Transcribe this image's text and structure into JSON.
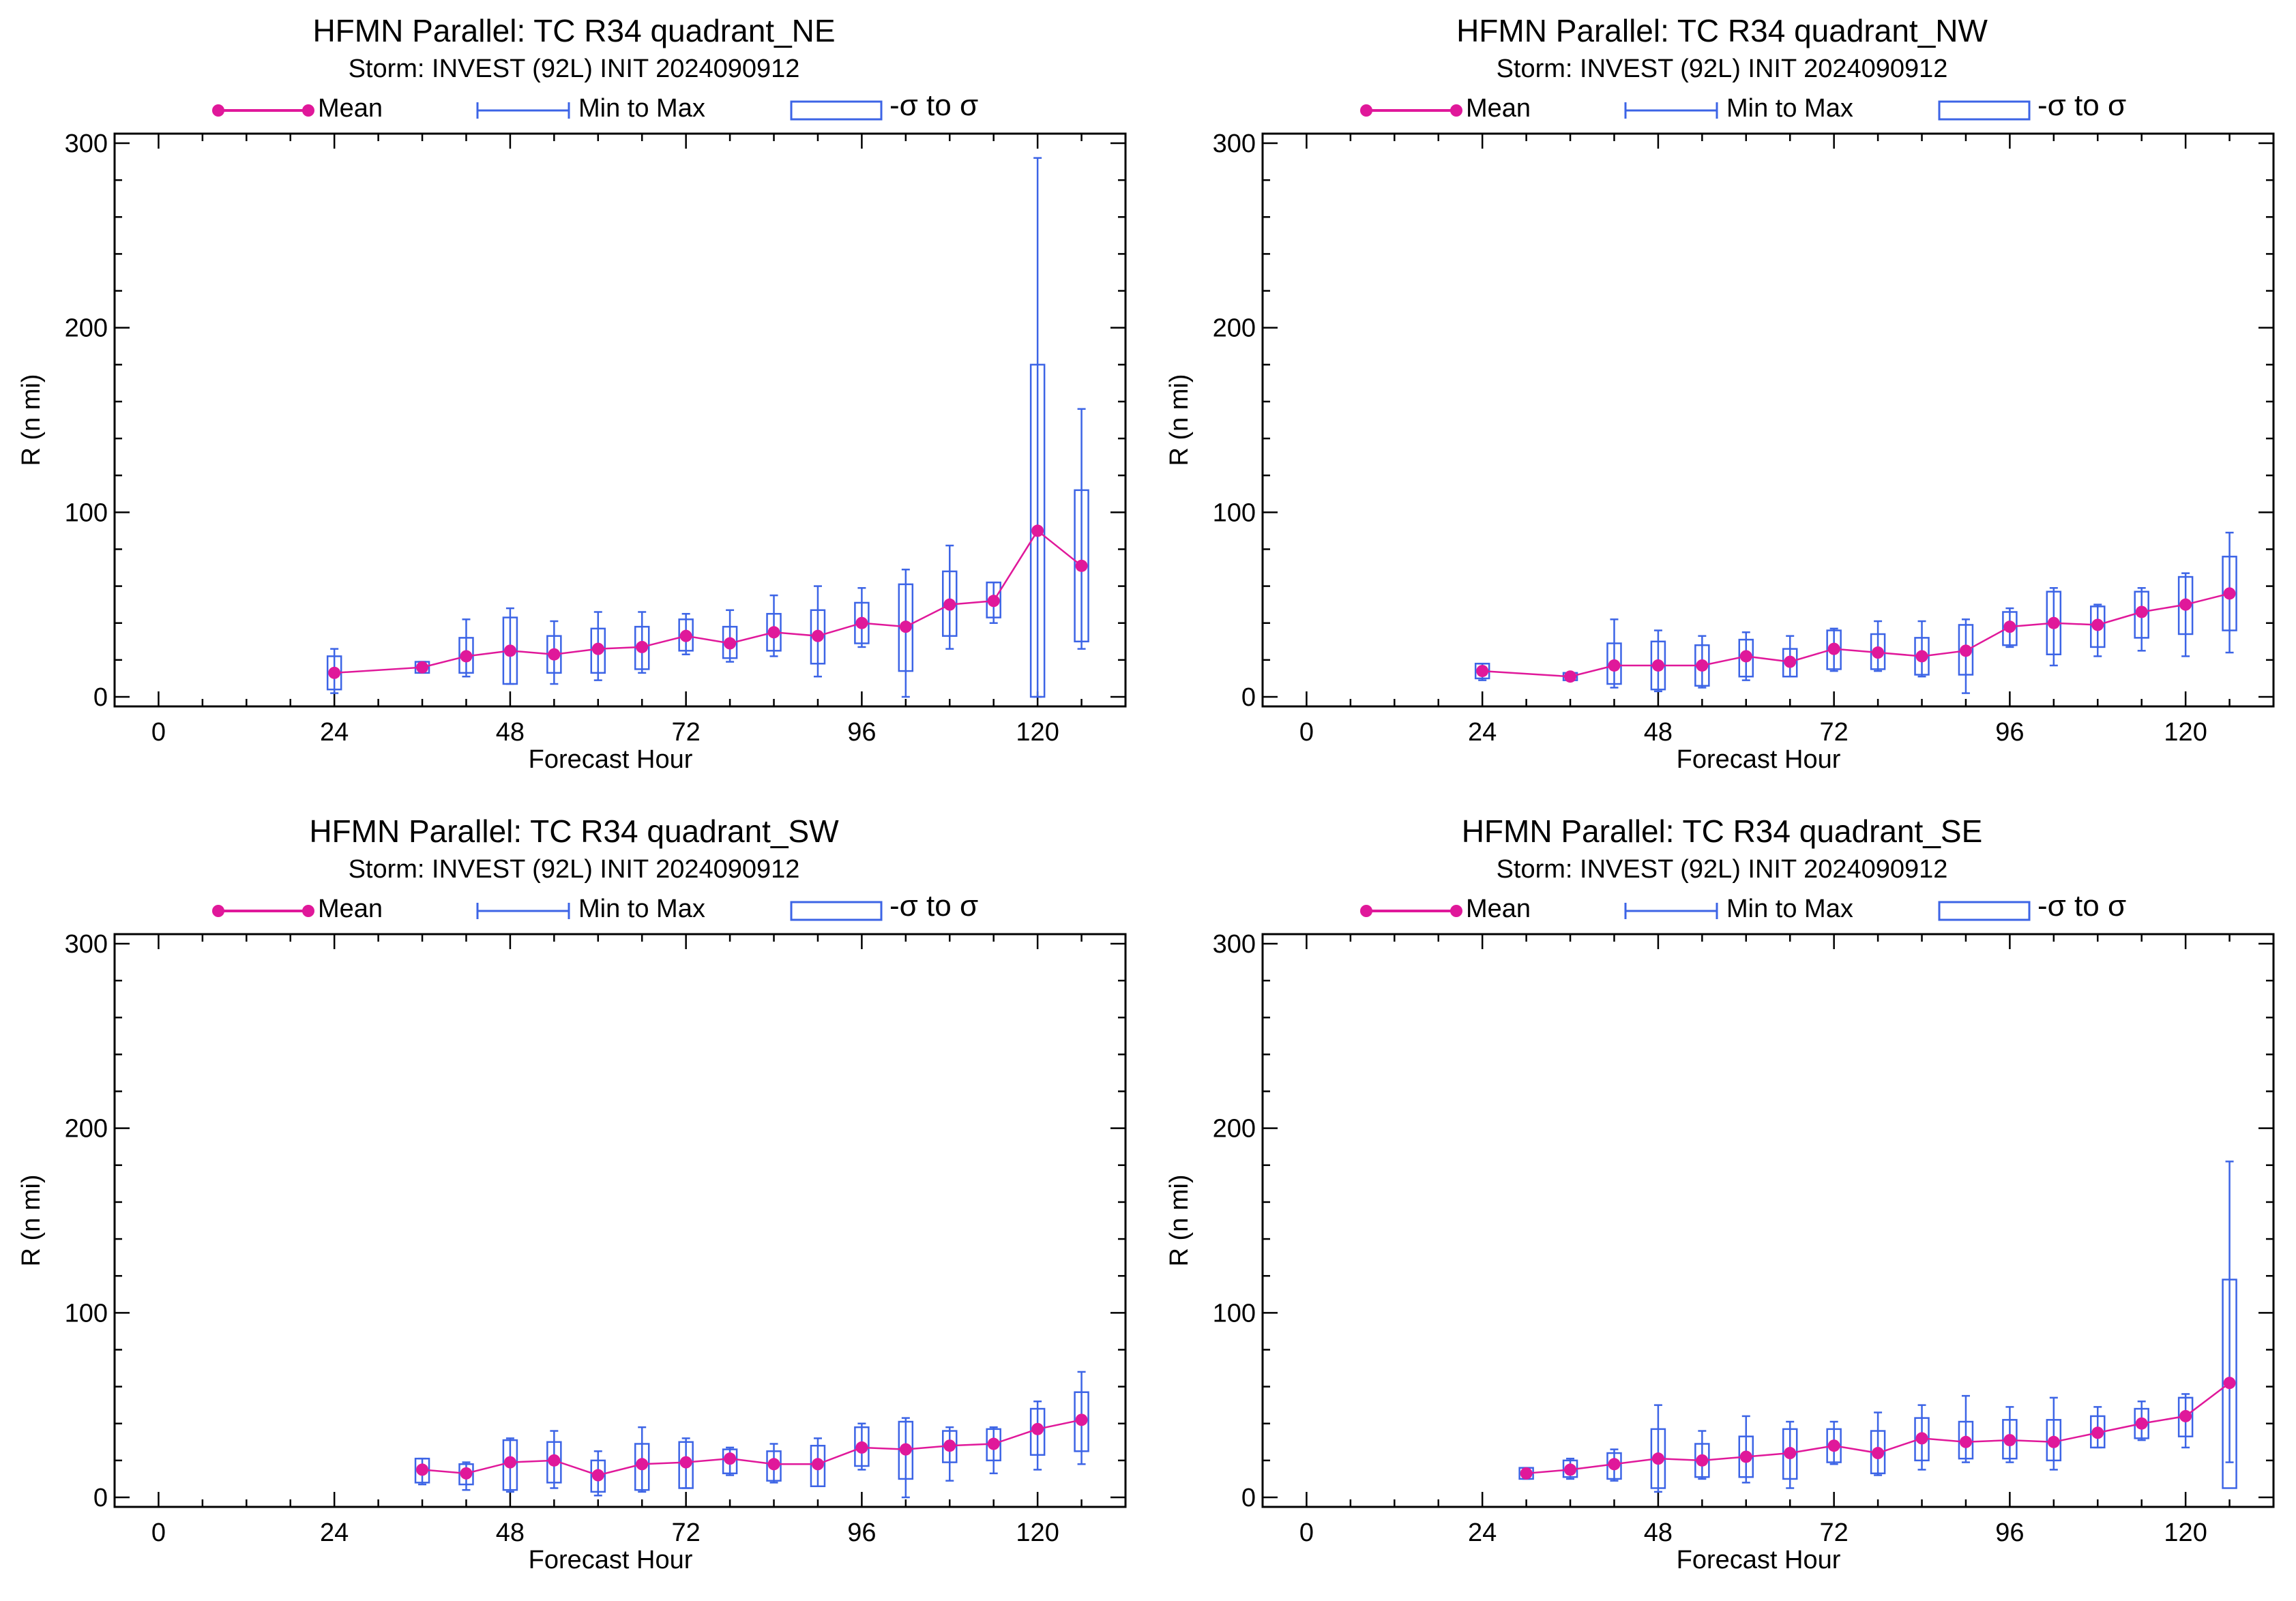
{
  "legend": {
    "mean": "Mean",
    "min_max": "Min to Max",
    "sigma": "-σ to σ"
  },
  "colors": {
    "mean": "#e0189a",
    "box": "#3c64e6",
    "axis": "#000000"
  },
  "chart_data": [
    {
      "type": "box",
      "title": "HFMN Parallel: TC  R34 quadrant_NE",
      "subtitle": "Storm: INVEST (92L) INIT 2024090912",
      "xlabel": "Forecast Hour",
      "ylabel": "R (n mi)",
      "xlim": [
        -6,
        132
      ],
      "ylim": [
        0,
        300
      ],
      "xticks": [
        0,
        24,
        48,
        72,
        96,
        120
      ],
      "yticks": [
        0,
        100,
        200,
        300
      ],
      "x": [
        24,
        36,
        42,
        48,
        54,
        60,
        66,
        72,
        78,
        84,
        90,
        96,
        102,
        108,
        114,
        120,
        126
      ],
      "mean": [
        13,
        16,
        22,
        25,
        23,
        26,
        27,
        33,
        29,
        35,
        33,
        40,
        38,
        50,
        52,
        90,
        71
      ],
      "min": [
        2,
        13,
        11,
        7,
        7,
        9,
        13,
        23,
        19,
        22,
        11,
        27,
        0,
        26,
        40,
        0,
        26
      ],
      "max": [
        26,
        19,
        42,
        48,
        41,
        46,
        46,
        45,
        47,
        55,
        60,
        59,
        69,
        82,
        62,
        292,
        156
      ],
      "sd_low": [
        4,
        13,
        13,
        7,
        13,
        13,
        15,
        25,
        21,
        25,
        18,
        29,
        14,
        33,
        43,
        0,
        30
      ],
      "sd_high": [
        22,
        19,
        32,
        43,
        33,
        37,
        38,
        42,
        38,
        45,
        47,
        51,
        61,
        68,
        62,
        180,
        112
      ]
    },
    {
      "type": "box",
      "title": "HFMN Parallel: TC  R34 quadrant_NW",
      "subtitle": "Storm: INVEST (92L) INIT 2024090912",
      "xlabel": "Forecast Hour",
      "ylabel": "R (n mi)",
      "xlim": [
        -6,
        132
      ],
      "ylim": [
        0,
        300
      ],
      "xticks": [
        0,
        24,
        48,
        72,
        96,
        120
      ],
      "yticks": [
        0,
        100,
        200,
        300
      ],
      "x": [
        24,
        36,
        42,
        48,
        54,
        60,
        66,
        72,
        78,
        84,
        90,
        96,
        102,
        108,
        114,
        120,
        126
      ],
      "mean": [
        14,
        11,
        17,
        17,
        17,
        22,
        19,
        26,
        24,
        22,
        25,
        38,
        40,
        39,
        46,
        50,
        56
      ],
      "min": [
        9,
        9,
        5,
        3,
        5,
        9,
        11,
        14,
        14,
        11,
        2,
        27,
        17,
        22,
        25,
        22,
        24
      ],
      "max": [
        18,
        13,
        42,
        36,
        33,
        35,
        33,
        37,
        41,
        41,
        42,
        48,
        59,
        50,
        59,
        67,
        89
      ],
      "sd_low": [
        10,
        9,
        7,
        4,
        6,
        11,
        11,
        15,
        15,
        12,
        12,
        28,
        23,
        27,
        32,
        34,
        36
      ],
      "sd_high": [
        18,
        13,
        29,
        30,
        28,
        31,
        26,
        36,
        34,
        32,
        39,
        46,
        57,
        49,
        57,
        65,
        76
      ]
    },
    {
      "type": "box",
      "title": "HFMN Parallel: TC  R34 quadrant_SW",
      "subtitle": "Storm: INVEST (92L) INIT 2024090912",
      "xlabel": "Forecast Hour",
      "ylabel": "R (n mi)",
      "xlim": [
        -6,
        132
      ],
      "ylim": [
        0,
        300
      ],
      "xticks": [
        0,
        24,
        48,
        72,
        96,
        120
      ],
      "yticks": [
        0,
        100,
        200,
        300
      ],
      "x": [
        36,
        42,
        48,
        54,
        60,
        66,
        72,
        78,
        84,
        90,
        96,
        102,
        108,
        114,
        120,
        126
      ],
      "mean": [
        15,
        13,
        19,
        20,
        12,
        18,
        19,
        21,
        18,
        18,
        27,
        26,
        28,
        29,
        37,
        42
      ],
      "min": [
        7,
        4,
        3,
        5,
        1,
        3,
        5,
        12,
        8,
        6,
        15,
        0,
        9,
        13,
        15,
        18
      ],
      "max": [
        21,
        19,
        32,
        36,
        25,
        38,
        32,
        27,
        29,
        32,
        40,
        43,
        38,
        38,
        52,
        68
      ],
      "sd_low": [
        8,
        7,
        4,
        8,
        3,
        4,
        5,
        13,
        9,
        6,
        17,
        10,
        19,
        20,
        23,
        25
      ],
      "sd_high": [
        21,
        18,
        31,
        30,
        20,
        29,
        30,
        26,
        25,
        28,
        38,
        41,
        36,
        37,
        48,
        57
      ]
    },
    {
      "type": "box",
      "title": "HFMN Parallel: TC  R34 quadrant_SE",
      "subtitle": "Storm: INVEST (92L) INIT 2024090912",
      "xlabel": "Forecast Hour",
      "ylabel": "R (n mi)",
      "xlim": [
        -6,
        132
      ],
      "ylim": [
        0,
        300
      ],
      "xticks": [
        0,
        24,
        48,
        72,
        96,
        120
      ],
      "yticks": [
        0,
        100,
        200,
        300
      ],
      "x": [
        30,
        36,
        42,
        48,
        54,
        60,
        66,
        72,
        78,
        84,
        90,
        96,
        102,
        108,
        114,
        120,
        126
      ],
      "mean": [
        13,
        15,
        18,
        21,
        20,
        22,
        24,
        28,
        24,
        32,
        30,
        31,
        30,
        35,
        40,
        44,
        62
      ],
      "min": [
        10,
        10,
        9,
        3,
        10,
        8,
        5,
        18,
        12,
        15,
        19,
        19,
        15,
        27,
        31,
        27,
        19
      ],
      "max": [
        16,
        21,
        26,
        50,
        36,
        44,
        41,
        41,
        46,
        50,
        55,
        49,
        54,
        49,
        52,
        56,
        182
      ],
      "sd_low": [
        10,
        11,
        10,
        5,
        11,
        11,
        10,
        19,
        13,
        20,
        21,
        21,
        20,
        27,
        32,
        33,
        5
      ],
      "sd_high": [
        16,
        20,
        24,
        37,
        29,
        33,
        37,
        37,
        36,
        43,
        41,
        42,
        42,
        44,
        48,
        54,
        118
      ]
    }
  ]
}
